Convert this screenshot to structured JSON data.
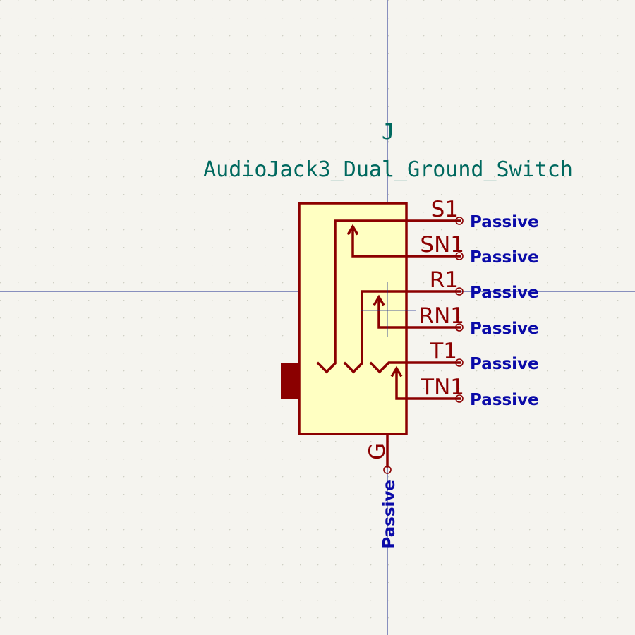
{
  "symbol": {
    "reference": "J",
    "value": "AudioJack3_Dual_Ground_Switch",
    "colors": {
      "background": "#f5f4ef",
      "grid_dot": "#cfcfc4",
      "crosshair": "#1a2a8c",
      "body_fill": "#ffffc2",
      "body_outline": "#8b0000",
      "text_reference": "#00695f",
      "pin_name": "#8b0000",
      "electrical_type": "#0a0aa8"
    }
  },
  "pins": [
    {
      "name": "S1",
      "type": "Passive"
    },
    {
      "name": "SN1",
      "type": "Passive"
    },
    {
      "name": "R1",
      "type": "Passive"
    },
    {
      "name": "RN1",
      "type": "Passive"
    },
    {
      "name": "T1",
      "type": "Passive"
    },
    {
      "name": "TN1",
      "type": "Passive"
    },
    {
      "name": "G",
      "type": "Passive"
    }
  ]
}
